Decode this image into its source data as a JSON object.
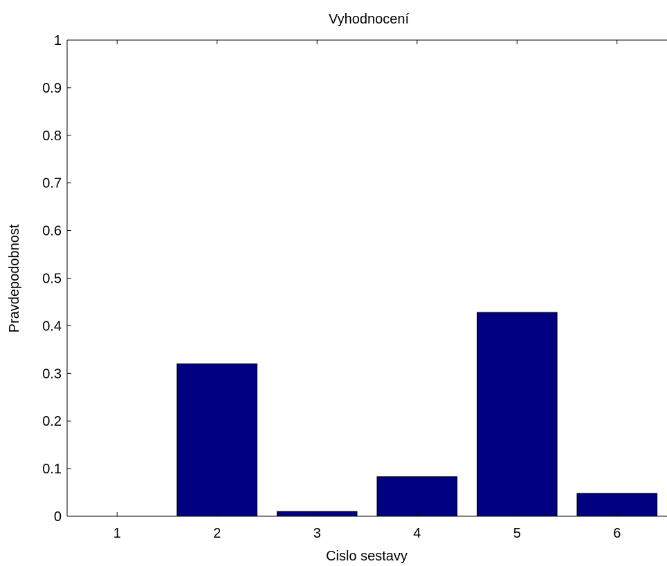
{
  "chart_data": {
    "type": "bar",
    "title": "Vyhodnocení",
    "xlabel": "Cislo sestavy",
    "ylabel": "Pravdepodobnost",
    "categories": [
      "1",
      "2",
      "3",
      "4",
      "5",
      "6"
    ],
    "values": [
      0,
      0.32,
      0.01,
      0.083,
      0.428,
      0.048
    ],
    "ylim": [
      0,
      1
    ],
    "yticks": [
      "0",
      "0.1",
      "0.2",
      "0.3",
      "0.4",
      "0.5",
      "0.6",
      "0.7",
      "0.8",
      "0.9",
      "1"
    ],
    "grid": false,
    "legend": "none",
    "colors": {
      "bar": "#000080",
      "axis": "#000000",
      "background": "#ffffff"
    }
  }
}
